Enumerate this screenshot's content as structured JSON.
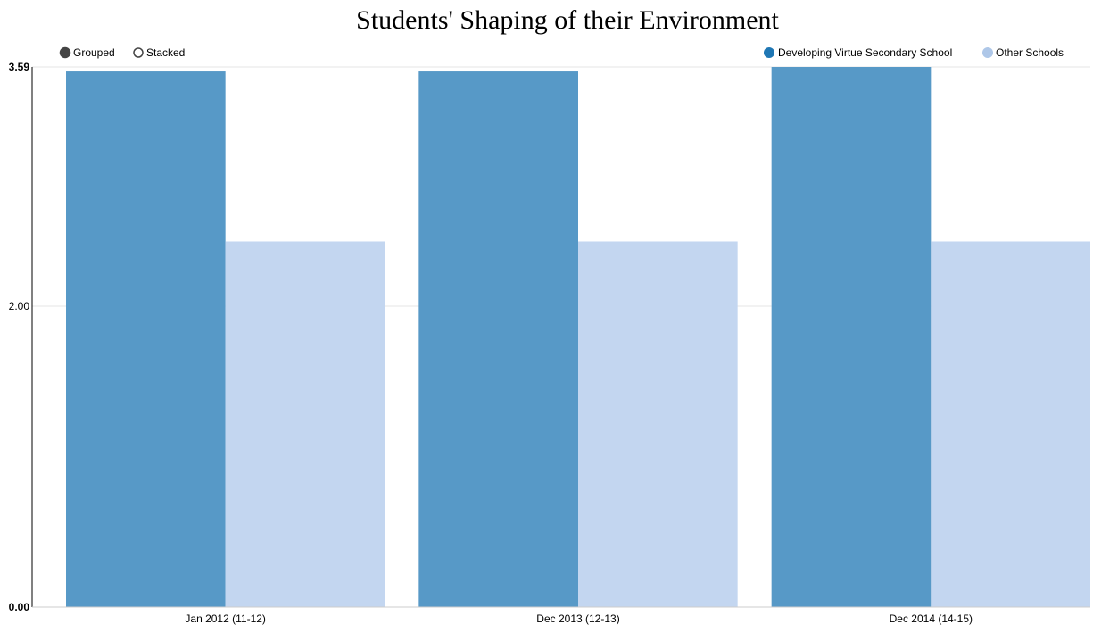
{
  "chart_data": {
    "type": "bar",
    "title": "Students' Shaping of their Environment",
    "xlabel": "",
    "ylabel": "",
    "categories": [
      "Jan 2012 (11-12)",
      "Dec 2013 (12-13)",
      "Dec 2014 (14-15)"
    ],
    "series": [
      {
        "name": "Developing Virtue Secondary School",
        "color": "#5799c7",
        "values": [
          3.56,
          3.56,
          3.59
        ]
      },
      {
        "name": "Other Schools",
        "color": "#c3d6f0",
        "values": [
          2.43,
          2.43,
          2.43
        ]
      }
    ],
    "ylim": [
      0,
      3.59
    ],
    "yticks": [
      "0.00",
      "2.00",
      "3.59"
    ],
    "ytick_values": [
      0,
      2.0,
      3.59
    ],
    "grid": true,
    "legend_position": "top-right"
  },
  "controls": {
    "mode_options": [
      "Grouped",
      "Stacked"
    ],
    "selected_mode": "Grouped"
  },
  "colors": {
    "legend_series_1": "#1f77b4",
    "legend_series_2": "#aec7e8",
    "grid": "#e6e6e6",
    "axis": "#000000",
    "radio_filled": "#444444"
  }
}
